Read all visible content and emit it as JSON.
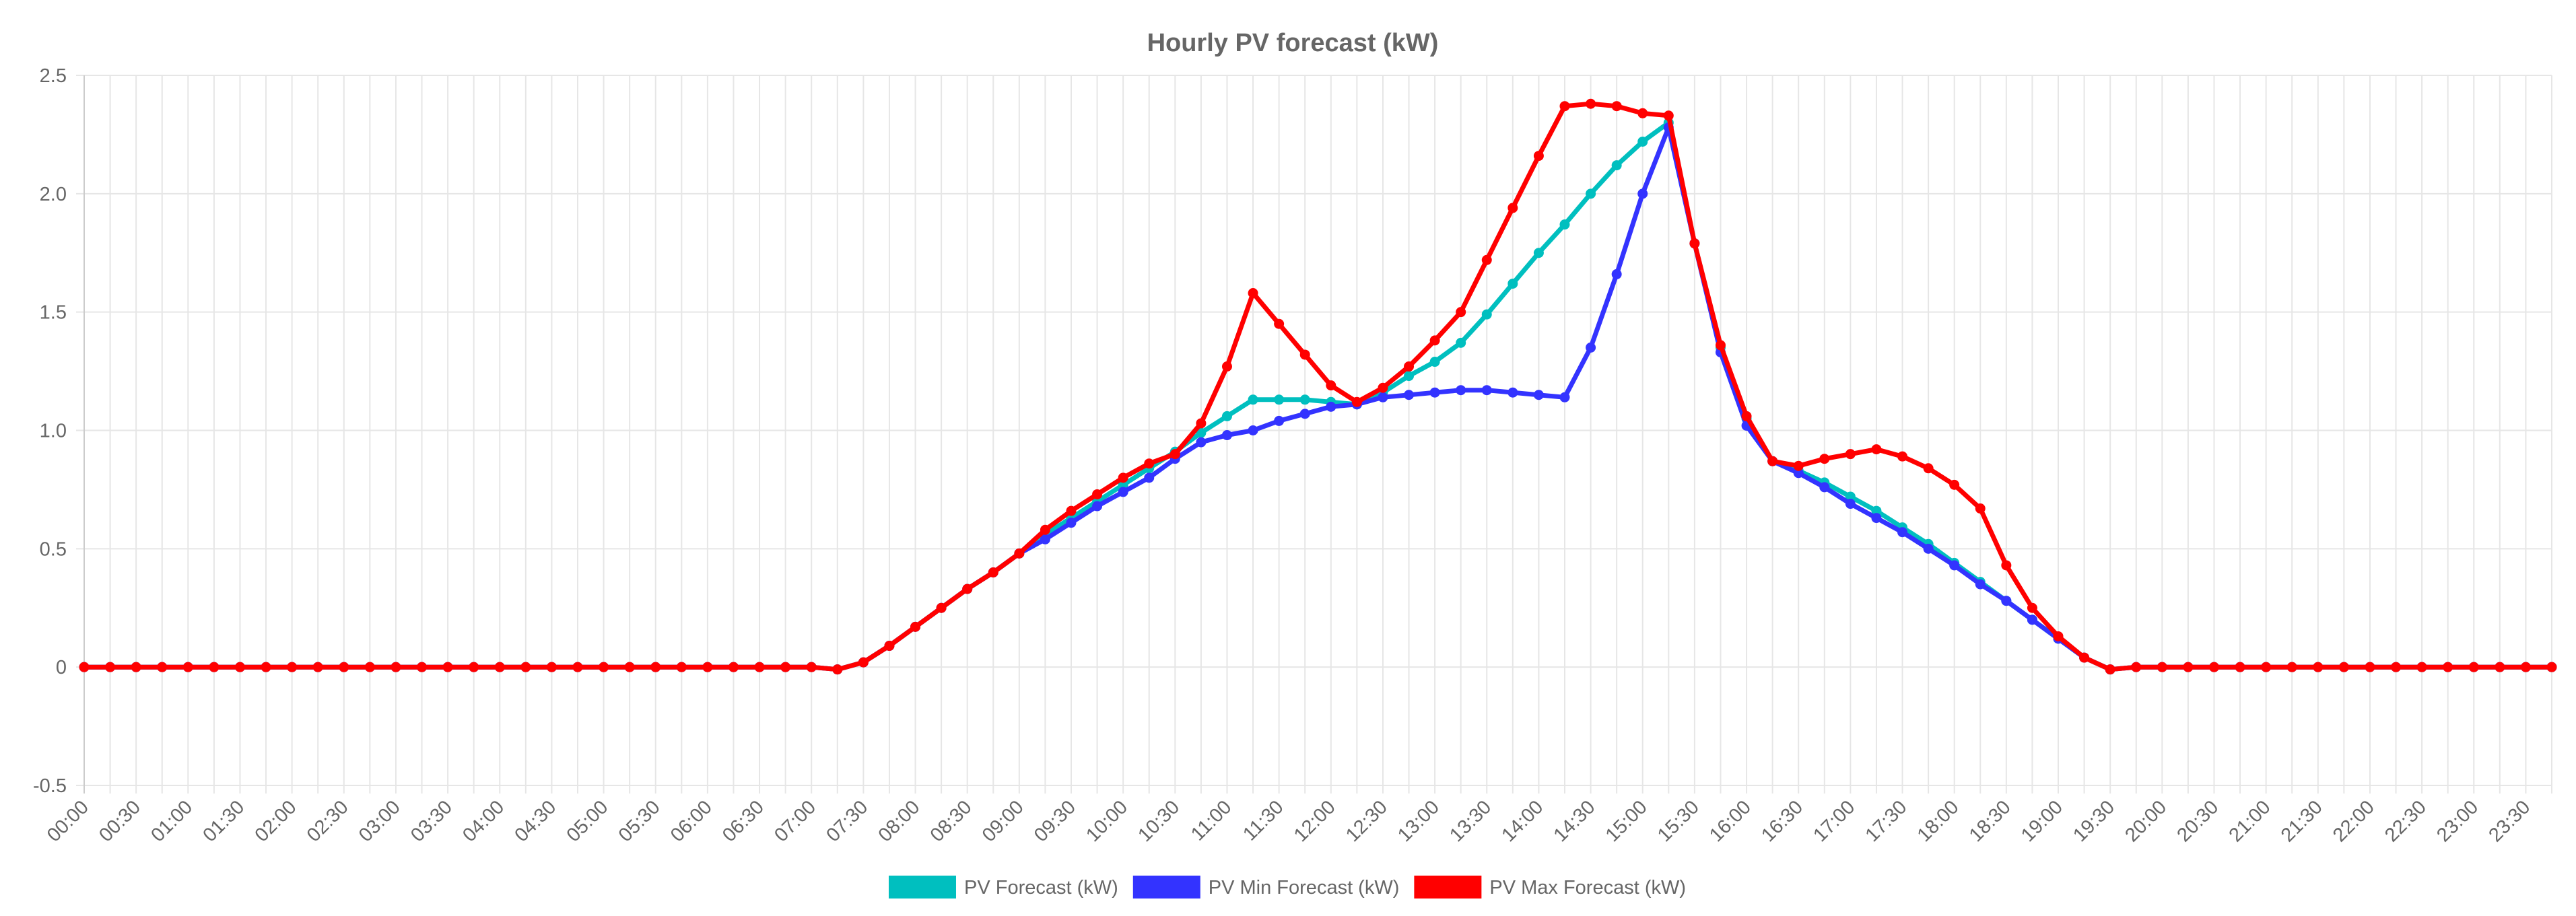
{
  "chart_data": {
    "type": "line",
    "title": "Hourly PV forecast (kW)",
    "xlabel": "",
    "ylabel": "",
    "ylim": [
      -0.5,
      2.5
    ],
    "yticks": [
      "2.5",
      "2.0",
      "1.5",
      "1.0",
      "0.5",
      "0",
      "-0.5"
    ],
    "ytick_values": [
      2.5,
      2.0,
      1.5,
      1.0,
      0.5,
      0,
      -0.5
    ],
    "x_labels": [
      "00:00",
      "00:30",
      "01:00",
      "01:30",
      "02:00",
      "02:30",
      "03:00",
      "03:30",
      "04:00",
      "04:30",
      "05:00",
      "05:30",
      "06:00",
      "06:30",
      "07:00",
      "07:30",
      "08:00",
      "08:30",
      "09:00",
      "09:30",
      "10:00",
      "10:30",
      "11:00",
      "11:30",
      "12:00",
      "12:30",
      "13:00",
      "13:30",
      "14:00",
      "14:30",
      "15:00",
      "15:30",
      "16:00",
      "16:30",
      "17:00",
      "17:30",
      "18:00",
      "18:30",
      "19:00",
      "19:30",
      "20:00",
      "20:30",
      "21:00",
      "21:30",
      "22:00",
      "22:30",
      "23:00",
      "23:30"
    ],
    "x_step_minutes": 15,
    "point_count": 96,
    "grid": true,
    "legend_position": "bottom-center",
    "series": [
      {
        "name": "PV Forecast (kW)",
        "color": "#00BFBF",
        "values": [
          0,
          0,
          0,
          0,
          0,
          0,
          0,
          0,
          0,
          0,
          0,
          0,
          0,
          0,
          0,
          0,
          0,
          0,
          0,
          0,
          0,
          0,
          0,
          0,
          0,
          0,
          0,
          0,
          0,
          -0.01,
          0.02,
          0.09,
          0.17,
          0.25,
          0.33,
          0.4,
          0.48,
          0.56,
          0.63,
          0.7,
          0.77,
          0.84,
          0.91,
          0.99,
          1.06,
          1.13,
          1.13,
          1.13,
          1.12,
          1.11,
          1.16,
          1.23,
          1.29,
          1.37,
          1.49,
          1.62,
          1.75,
          1.87,
          2.0,
          2.12,
          2.22,
          2.3,
          1.79,
          1.35,
          1.05,
          0.87,
          0.83,
          0.78,
          0.72,
          0.66,
          0.59,
          0.52,
          0.44,
          0.36,
          0.28,
          0.2,
          0.12,
          0.04,
          -0.01,
          0,
          0,
          0,
          0,
          0,
          0,
          0,
          0,
          0,
          0,
          0,
          0,
          0,
          0,
          0,
          0,
          0
        ]
      },
      {
        "name": "PV Min Forecast (kW)",
        "color": "#3333FF",
        "values": [
          0,
          0,
          0,
          0,
          0,
          0,
          0,
          0,
          0,
          0,
          0,
          0,
          0,
          0,
          0,
          0,
          0,
          0,
          0,
          0,
          0,
          0,
          0,
          0,
          0,
          0,
          0,
          0,
          0,
          -0.01,
          0.02,
          0.09,
          0.17,
          0.25,
          0.33,
          0.4,
          0.48,
          0.54,
          0.61,
          0.68,
          0.74,
          0.8,
          0.88,
          0.95,
          0.98,
          1.0,
          1.04,
          1.07,
          1.1,
          1.11,
          1.14,
          1.15,
          1.16,
          1.17,
          1.17,
          1.16,
          1.15,
          1.14,
          1.35,
          1.66,
          2.0,
          2.28,
          1.79,
          1.33,
          1.02,
          0.87,
          0.82,
          0.76,
          0.69,
          0.63,
          0.57,
          0.5,
          0.43,
          0.35,
          0.28,
          0.2,
          0.12,
          0.04,
          -0.01,
          0,
          0,
          0,
          0,
          0,
          0,
          0,
          0,
          0,
          0,
          0,
          0,
          0,
          0,
          0,
          0,
          0
        ]
      },
      {
        "name": "PV Max Forecast (kW)",
        "color": "#FF0000",
        "values": [
          0,
          0,
          0,
          0,
          0,
          0,
          0,
          0,
          0,
          0,
          0,
          0,
          0,
          0,
          0,
          0,
          0,
          0,
          0,
          0,
          0,
          0,
          0,
          0,
          0,
          0,
          0,
          0,
          0,
          -0.01,
          0.02,
          0.09,
          0.17,
          0.25,
          0.33,
          0.4,
          0.48,
          0.58,
          0.66,
          0.73,
          0.8,
          0.86,
          0.9,
          1.03,
          1.27,
          1.58,
          1.45,
          1.32,
          1.19,
          1.12,
          1.18,
          1.27,
          1.38,
          1.5,
          1.72,
          1.94,
          2.16,
          2.37,
          2.38,
          2.37,
          2.34,
          2.33,
          1.79,
          1.36,
          1.06,
          0.87,
          0.85,
          0.88,
          0.9,
          0.92,
          0.89,
          0.84,
          0.77,
          0.67,
          0.43,
          0.25,
          0.13,
          0.04,
          -0.01,
          0,
          0,
          0,
          0,
          0,
          0,
          0,
          0,
          0,
          0,
          0,
          0,
          0,
          0,
          0,
          0,
          0
        ]
      }
    ]
  }
}
